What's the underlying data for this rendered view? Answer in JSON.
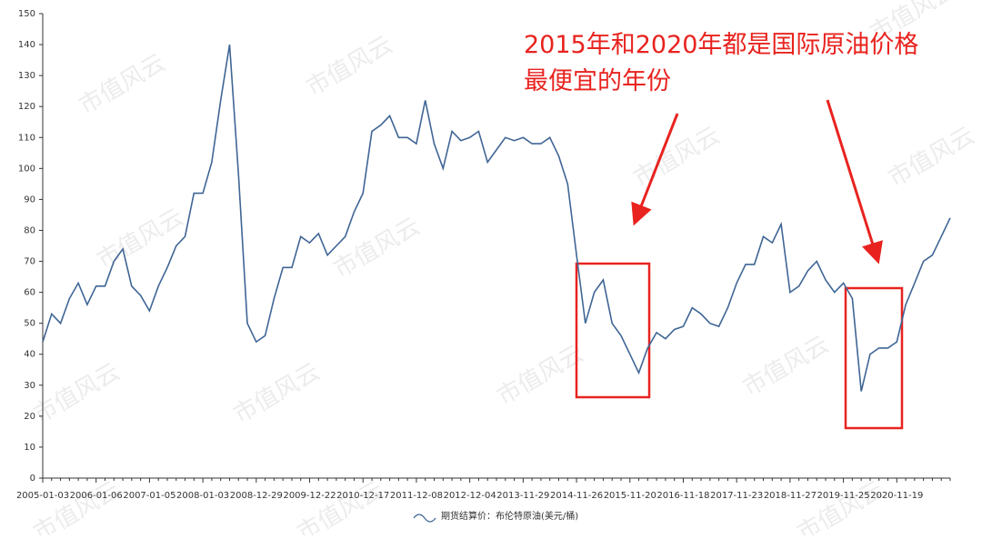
{
  "chart_data": {
    "type": "line",
    "annotation": [
      "2015年和2020年都是国际原油价格",
      "最便宜的年份"
    ],
    "watermark": "市值风云",
    "categories": [
      "2005-01-03",
      null,
      null,
      null,
      null,
      null,
      "2006-01-06",
      null,
      null,
      null,
      null,
      null,
      "2007-01-05",
      null,
      null,
      null,
      null,
      null,
      "2008-01-03",
      null,
      null,
      null,
      null,
      null,
      "2008-12-29",
      null,
      null,
      null,
      null,
      null,
      "2009-12-22",
      null,
      null,
      null,
      null,
      null,
      "2010-12-17",
      null,
      null,
      null,
      null,
      null,
      "2011-12-08",
      null,
      null,
      null,
      null,
      null,
      "2012-12-04",
      null,
      null,
      null,
      null,
      null,
      "2013-11-29",
      null,
      null,
      null,
      null,
      null,
      "2014-11-26",
      null,
      null,
      null,
      null,
      null,
      "2015-11-20",
      null,
      null,
      null,
      null,
      null,
      "2016-11-18",
      null,
      null,
      null,
      null,
      null,
      "2017-11-23",
      null,
      null,
      null,
      null,
      null,
      "2018-11-27",
      null,
      null,
      null,
      null,
      null,
      "2019-11-25",
      null,
      null,
      null,
      null,
      null,
      "2020-11-19",
      null,
      null,
      null,
      null,
      null,
      null
    ],
    "series": [
      {
        "name": "期货结算价：布伦特原油(美元/桶)",
        "color": "#3f6595",
        "values": [
          44,
          53,
          50,
          58,
          63,
          56,
          62,
          62,
          70,
          74,
          62,
          59,
          54,
          62,
          68,
          75,
          78,
          92,
          92,
          102,
          122,
          140,
          98,
          50,
          44,
          46,
          58,
          68,
          68,
          78,
          76,
          79,
          72,
          75,
          78,
          86,
          92,
          112,
          114,
          117,
          110,
          110,
          108,
          122,
          108,
          100,
          112,
          109,
          110,
          112,
          102,
          106,
          110,
          109,
          110,
          108,
          108,
          110,
          104,
          95,
          72,
          50,
          60,
          64,
          50,
          46,
          40,
          34,
          42,
          47,
          45,
          48,
          49,
          55,
          53,
          50,
          49,
          55,
          63,
          69,
          69,
          78,
          76,
          82,
          60,
          62,
          67,
          70,
          64,
          60,
          63,
          58,
          28,
          40,
          42,
          42,
          44,
          56,
          63,
          70,
          72,
          78,
          84
        ]
      }
    ],
    "ylim": [
      0,
      150
    ],
    "yticks": [
      0,
      10,
      20,
      30,
      40,
      50,
      60,
      70,
      80,
      90,
      100,
      110,
      120,
      130,
      140,
      150
    ],
    "grid": false
  }
}
